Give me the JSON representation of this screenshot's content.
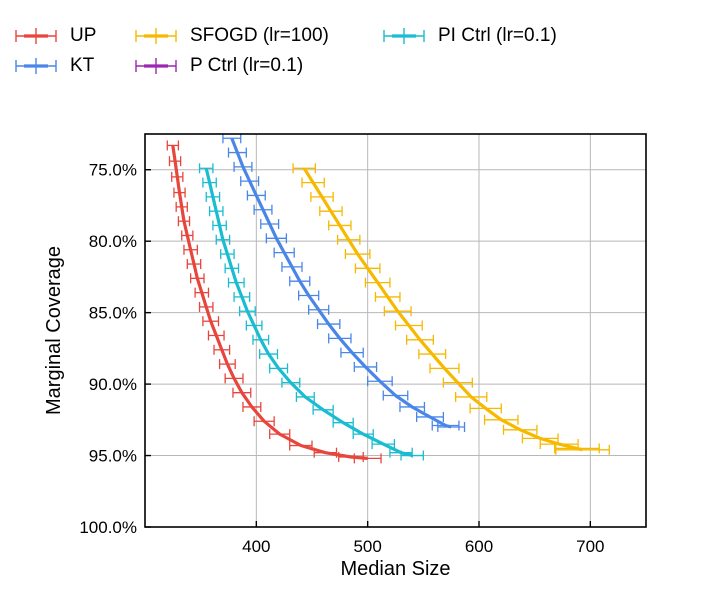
{
  "chart_data": {
    "type": "line",
    "xlabel": "Median Size",
    "ylabel": "Marginal Coverage",
    "xlim": [
      300,
      750
    ],
    "ylim": [
      72.5,
      100
    ],
    "y_inverted": true,
    "xticks": [
      400,
      500,
      600,
      700
    ],
    "yticks": [
      75,
      80,
      85,
      90,
      95,
      100
    ],
    "ytick_labels": [
      "75.0%",
      "80.0%",
      "85.0%",
      "90.0%",
      "95.0%",
      "100.0%"
    ],
    "grid": true,
    "legend_position": "top",
    "series": [
      {
        "name": "UP",
        "color": "#e8453c",
        "error": "horizontal",
        "points": [
          [
            325,
            73.3
          ],
          [
            327,
            74.4
          ],
          [
            329,
            75.5
          ],
          [
            331,
            76.6
          ],
          [
            333,
            77.6
          ],
          [
            335,
            78.6
          ],
          [
            338,
            79.6
          ],
          [
            341,
            80.6
          ],
          [
            344,
            81.6
          ],
          [
            347,
            82.6
          ],
          [
            351,
            83.6
          ],
          [
            355,
            84.6
          ],
          [
            359,
            85.6
          ],
          [
            364,
            86.6
          ],
          [
            369,
            87.6
          ],
          [
            374,
            88.6
          ],
          [
            380,
            89.6
          ],
          [
            387,
            90.6
          ],
          [
            396,
            91.6
          ],
          [
            407,
            92.6
          ],
          [
            421,
            93.5
          ],
          [
            440,
            94.3
          ],
          [
            462,
            94.8
          ],
          [
            485,
            95.1
          ],
          [
            500,
            95.2
          ]
        ],
        "xerr": [
          5,
          5,
          5,
          5,
          5,
          5,
          5,
          6,
          6,
          6,
          6,
          6,
          7,
          7,
          7,
          7,
          8,
          8,
          8,
          9,
          9,
          10,
          10,
          11,
          12
        ]
      },
      {
        "name": "KT",
        "color": "#4a86e8",
        "error": "horizontal",
        "points": [
          [
            378,
            72.8
          ],
          [
            383,
            73.8
          ],
          [
            388,
            74.8
          ],
          [
            394,
            75.8
          ],
          [
            400,
            76.8
          ],
          [
            406,
            77.8
          ],
          [
            412,
            78.8
          ],
          [
            418,
            79.8
          ],
          [
            425,
            80.8
          ],
          [
            432,
            81.8
          ],
          [
            439,
            82.8
          ],
          [
            447,
            83.8
          ],
          [
            456,
            84.8
          ],
          [
            465,
            85.8
          ],
          [
            475,
            86.8
          ],
          [
            486,
            87.8
          ],
          [
            498,
            88.8
          ],
          [
            511,
            89.8
          ],
          [
            525,
            90.8
          ],
          [
            540,
            91.6
          ],
          [
            556,
            92.3
          ],
          [
            570,
            92.9
          ],
          [
            575,
            93.0
          ]
        ],
        "xerr": [
          8,
          8,
          8,
          8,
          8,
          8,
          8,
          9,
          9,
          9,
          9,
          9,
          9,
          10,
          10,
          10,
          10,
          11,
          11,
          11,
          12,
          12,
          12
        ]
      },
      {
        "name": "SFOGD (lr=100)",
        "color": "#f6b900",
        "error": "horizontal",
        "points": [
          [
            443,
            74.9
          ],
          [
            451,
            75.9
          ],
          [
            459,
            76.9
          ],
          [
            467,
            77.9
          ],
          [
            475,
            78.9
          ],
          [
            483,
            79.9
          ],
          [
            491,
            80.9
          ],
          [
            500,
            81.9
          ],
          [
            509,
            82.9
          ],
          [
            518,
            83.9
          ],
          [
            527,
            84.9
          ],
          [
            537,
            85.9
          ],
          [
            547,
            86.9
          ],
          [
            558,
            87.9
          ],
          [
            569,
            88.9
          ],
          [
            581,
            89.9
          ],
          [
            593,
            90.9
          ],
          [
            606,
            91.7
          ],
          [
            620,
            92.5
          ],
          [
            637,
            93.2
          ],
          [
            655,
            93.8
          ],
          [
            672,
            94.2
          ],
          [
            688,
            94.5
          ],
          [
            693,
            94.6
          ]
        ],
        "xerr": [
          10,
          10,
          10,
          10,
          10,
          10,
          11,
          11,
          11,
          11,
          12,
          12,
          12,
          12,
          13,
          13,
          14,
          14,
          15,
          15,
          16,
          17,
          20,
          24
        ]
      },
      {
        "name": "P Ctrl (lr=0.1)",
        "color": "#9c27b0",
        "error": "horizontal",
        "points": [],
        "xerr": []
      },
      {
        "name": "PI Ctrl (lr=0.1)",
        "color": "#19bcd1",
        "error": "horizontal",
        "points": [
          [
            355,
            74.9
          ],
          [
            358,
            75.9
          ],
          [
            361,
            76.9
          ],
          [
            364,
            77.9
          ],
          [
            367,
            78.9
          ],
          [
            370,
            79.9
          ],
          [
            374,
            80.9
          ],
          [
            378,
            81.9
          ],
          [
            382,
            82.9
          ],
          [
            387,
            83.9
          ],
          [
            392,
            84.9
          ],
          [
            398,
            85.9
          ],
          [
            404,
            86.9
          ],
          [
            411,
            87.9
          ],
          [
            420,
            88.9
          ],
          [
            431,
            89.9
          ],
          [
            444,
            90.9
          ],
          [
            460,
            91.8
          ],
          [
            478,
            92.7
          ],
          [
            496,
            93.5
          ],
          [
            514,
            94.2
          ],
          [
            530,
            94.8
          ],
          [
            540,
            95.0
          ]
        ],
        "xerr": [
          6,
          6,
          6,
          6,
          6,
          6,
          6,
          6,
          7,
          7,
          7,
          7,
          7,
          8,
          8,
          8,
          8,
          9,
          9,
          9,
          10,
          10,
          10
        ]
      }
    ]
  }
}
